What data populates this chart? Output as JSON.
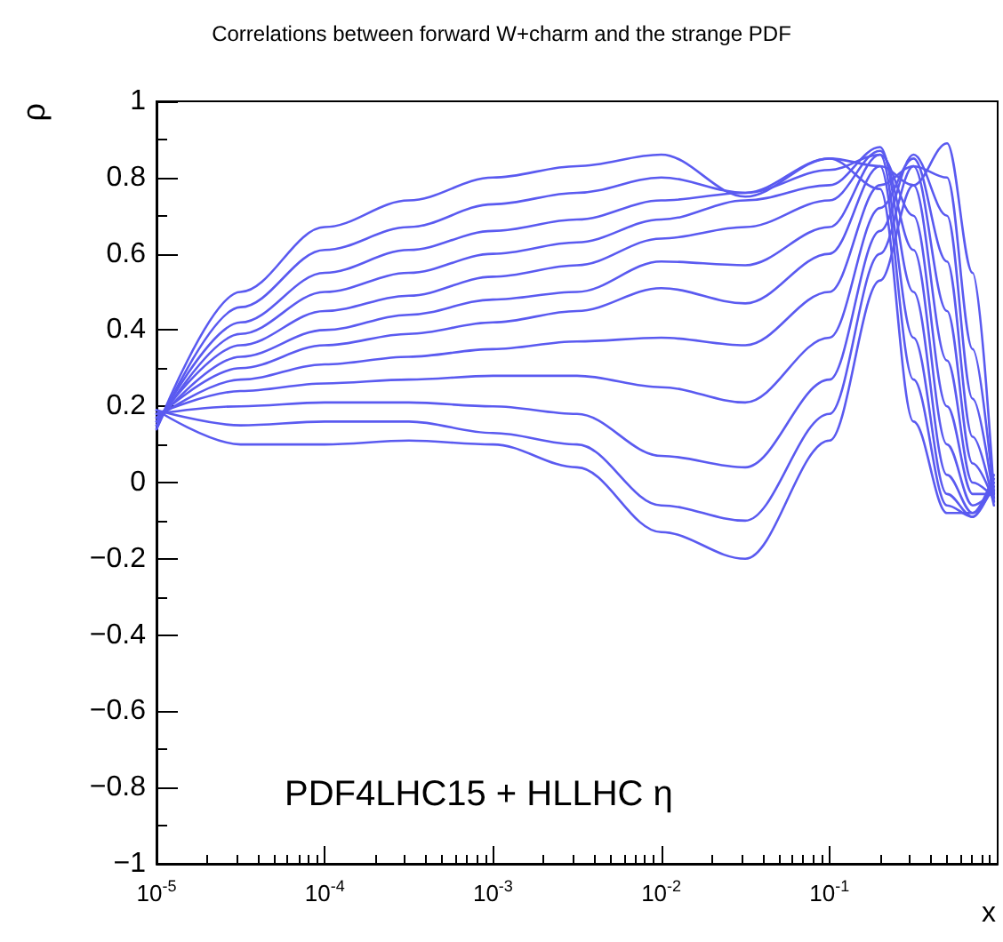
{
  "chart_data": {
    "type": "line",
    "title": "Correlations between forward W+charm and the strange PDF",
    "xlabel": "x",
    "ylabel": "ρ",
    "annotations": [
      "PDF4LHC15 + HLLHC η"
    ],
    "log": "x",
    "grid": false,
    "legend": false,
    "marker": "none",
    "line_style": "solid",
    "x": [
      1e-05,
      3.16e-05,
      0.0001,
      0.000316,
      0.001,
      0.00316,
      0.01,
      0.0316,
      0.1,
      0.2,
      0.316,
      0.5,
      0.71,
      0.95
    ],
    "xlim": [
      1e-05,
      1
    ],
    "xticks": [
      {
        "value": 1e-05,
        "label": "10$^{-5}$"
      },
      {
        "value": 0.0001,
        "label": "10$^{-4}$"
      },
      {
        "value": 0.001,
        "label": "10$^{-3}$"
      },
      {
        "value": 0.01,
        "label": "10$^{-2}$"
      },
      {
        "value": 0.1,
        "label": "10$^{-1}$"
      }
    ],
    "ylim": [
      -1,
      1
    ],
    "yticks": [
      -1,
      -0.8,
      -0.6,
      -0.4,
      -0.2,
      0,
      0.2,
      0.4,
      0.6,
      0.8,
      1
    ],
    "series": [
      {
        "color": "#5a5af0",
        "values": [
          0.14,
          0.5,
          0.67,
          0.74,
          0.8,
          0.83,
          0.86,
          0.75,
          0.85,
          0.77,
          0.16,
          -0.08,
          -0.08,
          0.02
        ]
      },
      {
        "color": "#5a5af0",
        "values": [
          0.14,
          0.46,
          0.61,
          0.67,
          0.73,
          0.76,
          0.8,
          0.76,
          0.85,
          0.83,
          0.27,
          -0.06,
          -0.09,
          0.01
        ]
      },
      {
        "color": "#5a5af0",
        "values": [
          0.15,
          0.42,
          0.55,
          0.61,
          0.66,
          0.69,
          0.74,
          0.76,
          0.82,
          0.86,
          0.38,
          -0.03,
          -0.09,
          0.0
        ]
      },
      {
        "color": "#5a5af0",
        "values": [
          0.15,
          0.39,
          0.5,
          0.55,
          0.6,
          0.63,
          0.69,
          0.74,
          0.78,
          0.88,
          0.5,
          0.02,
          -0.08,
          -0.01
        ]
      },
      {
        "color": "#5a5af0",
        "values": [
          0.16,
          0.36,
          0.45,
          0.49,
          0.54,
          0.57,
          0.64,
          0.67,
          0.74,
          0.87,
          0.61,
          0.1,
          -0.06,
          -0.02
        ]
      },
      {
        "color": "#5a5af0",
        "values": [
          0.16,
          0.33,
          0.4,
          0.44,
          0.48,
          0.5,
          0.58,
          0.57,
          0.67,
          0.86,
          0.7,
          0.2,
          -0.03,
          -0.03
        ]
      },
      {
        "color": "#5a5af0",
        "values": [
          0.17,
          0.3,
          0.36,
          0.39,
          0.42,
          0.45,
          0.51,
          0.47,
          0.6,
          0.83,
          0.78,
          0.32,
          0.0,
          -0.04
        ]
      },
      {
        "color": "#5a5af0",
        "values": [
          0.17,
          0.27,
          0.31,
          0.33,
          0.35,
          0.37,
          0.38,
          0.36,
          0.5,
          0.78,
          0.83,
          0.45,
          0.05,
          -0.05
        ]
      },
      {
        "color": "#5a5af0",
        "values": [
          0.18,
          0.24,
          0.26,
          0.27,
          0.28,
          0.28,
          0.25,
          0.21,
          0.38,
          0.72,
          0.85,
          0.58,
          0.12,
          -0.06
        ]
      },
      {
        "color": "#5a5af0",
        "values": [
          0.18,
          0.2,
          0.21,
          0.21,
          0.2,
          0.18,
          0.07,
          0.04,
          0.27,
          0.66,
          0.86,
          0.7,
          0.22,
          -0.05
        ]
      },
      {
        "color": "#5a5af0",
        "values": [
          0.19,
          0.15,
          0.16,
          0.16,
          0.13,
          0.1,
          -0.06,
          -0.1,
          0.18,
          0.6,
          0.83,
          0.8,
          0.35,
          -0.04
        ]
      },
      {
        "color": "#5a5af0",
        "values": [
          0.19,
          0.1,
          0.1,
          0.11,
          0.1,
          0.04,
          -0.13,
          -0.2,
          0.11,
          0.53,
          0.78,
          0.89,
          0.55,
          -0.03
        ]
      }
    ]
  }
}
